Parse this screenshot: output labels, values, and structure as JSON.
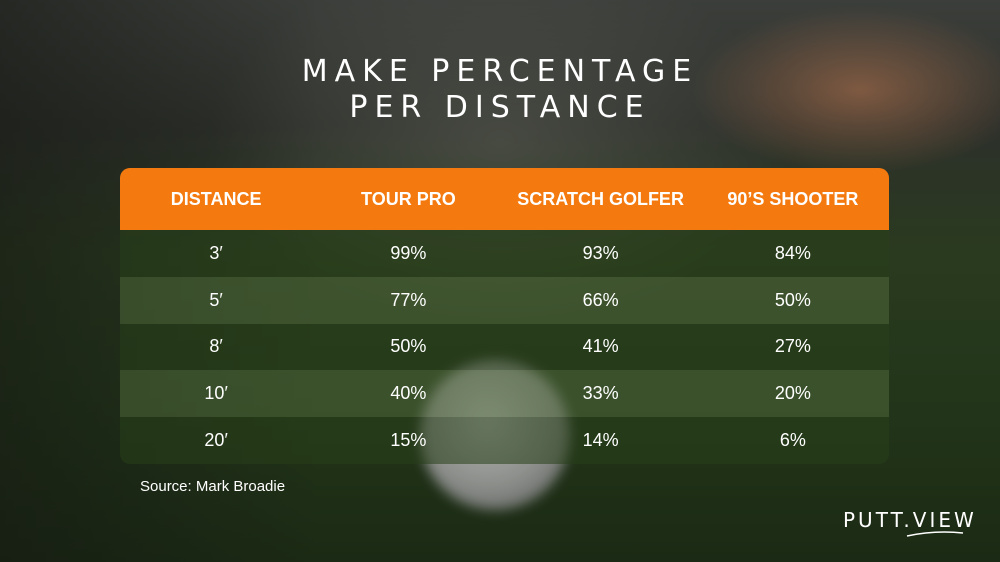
{
  "title_lines": [
    "MAKE PERCENTAGE",
    "PER DISTANCE"
  ],
  "chart_data": {
    "type": "table",
    "title": "MAKE PERCENTAGE PER DISTANCE",
    "columns": [
      "DISTANCE",
      "TOUR PRO",
      "SCRATCH GOLFER",
      "90’S SHOOTER"
    ],
    "rows": [
      [
        "3′",
        "99%",
        "93%",
        "84%"
      ],
      [
        "5′",
        "77%",
        "66%",
        "50%"
      ],
      [
        "8′",
        "50%",
        "41%",
        "27%"
      ],
      [
        "10′",
        "40%",
        "33%",
        "20%"
      ],
      [
        "20′",
        "15%",
        "14%",
        "6%"
      ]
    ]
  },
  "source": "Source: Mark Broadie",
  "logo": "PUTT.VIEW",
  "colors": {
    "header": "#f47a0f",
    "text": "#ffffff"
  }
}
